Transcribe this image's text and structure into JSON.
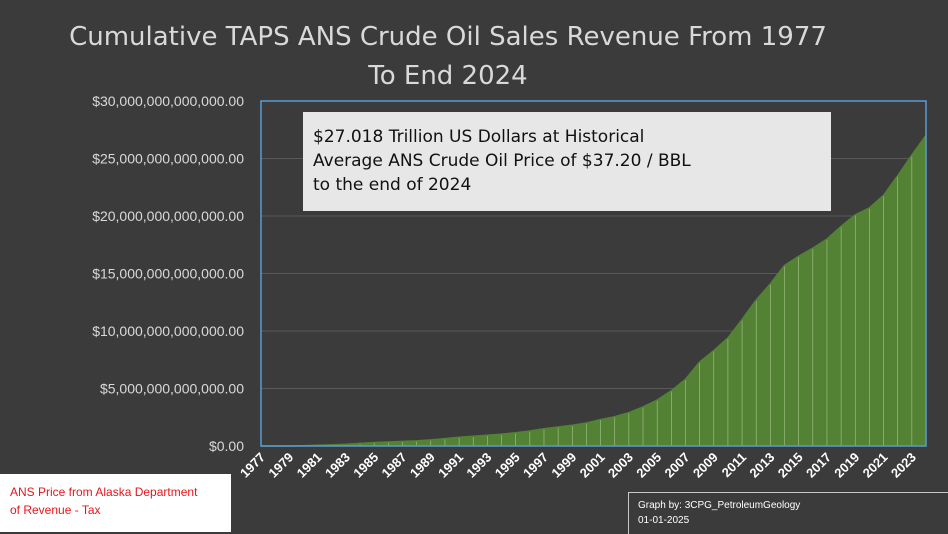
{
  "title_line1": "Cumulative TAPS ANS Crude Oil Sales Revenue From 1977",
  "title_line2": "To End 2024",
  "annotation": {
    "line1": "$27.018 Trillion US Dollars at Historical",
    "line2": "Average ANS Crude Oil Price of $37.20 / BBL",
    "line3": "to the end of 2024"
  },
  "source": {
    "line1": "ANS Price from Alaska Department",
    "line2": "of Revenue - Tax"
  },
  "credit": {
    "line1": "Graph by: 3CPG_PetroleumGeology",
    "line2": "01-01-2025"
  },
  "colors": {
    "background": "#3b3b3b",
    "area_fill": "#548235",
    "bar_divider": "#a9c48f",
    "plot_border": "#5b9bd5",
    "gridline": "#5a5a5a",
    "text": "#d9d9d9"
  },
  "chart_data": {
    "type": "area",
    "title": "Cumulative TAPS ANS Crude Oil Sales Revenue From 1977 To End 2024",
    "xlabel": "",
    "ylabel": "",
    "ylim": [
      0,
      30000000000000
    ],
    "yticks": [
      0,
      5000000000000,
      10000000000000,
      15000000000000,
      20000000000000,
      25000000000000,
      30000000000000
    ],
    "ytick_labels": [
      "$0.00",
      "$5,000,000,000,000.00",
      "$10,000,000,000,000.00",
      "$15,000,000,000,000.00",
      "$20,000,000,000,000.00",
      "$25,000,000,000,000.00",
      "$30,000,000,000,000.00"
    ],
    "xtick_labels": [
      "1977",
      "1979",
      "1981",
      "1983",
      "1985",
      "1987",
      "1989",
      "1991",
      "1993",
      "1995",
      "1997",
      "1999",
      "2001",
      "2003",
      "2005",
      "2007",
      "2009",
      "2011",
      "2013",
      "2015",
      "2017",
      "2019",
      "2021",
      "2023"
    ],
    "grid": true,
    "x": [
      1977,
      1978,
      1979,
      1980,
      1981,
      1982,
      1983,
      1984,
      1985,
      1986,
      1987,
      1988,
      1989,
      1990,
      1991,
      1992,
      1993,
      1994,
      1995,
      1996,
      1997,
      1998,
      1999,
      2000,
      2001,
      2002,
      2003,
      2004,
      2005,
      2006,
      2007,
      2008,
      2009,
      2010,
      2011,
      2012,
      2013,
      2014,
      2015,
      2016,
      2017,
      2018,
      2019,
      2020,
      2021,
      2022,
      2023,
      2024
    ],
    "values": [
      0,
      0,
      0,
      20000000000,
      60000000000,
      100000000000,
      150000000000,
      230000000000,
      300000000000,
      350000000000,
      400000000000,
      450000000000,
      530000000000,
      640000000000,
      760000000000,
      850000000000,
      940000000000,
      1030000000000,
      1150000000000,
      1300000000000,
      1500000000000,
      1650000000000,
      1800000000000,
      2000000000000,
      2300000000000,
      2550000000000,
      2900000000000,
      3400000000000,
      4000000000000,
      4800000000000,
      5800000000000,
      7300000000000,
      8300000000000,
      9400000000000,
      11000000000000,
      12700000000000,
      14100000000000,
      15700000000000,
      16500000000000,
      17200000000000,
      18000000000000,
      19100000000000,
      20100000000000,
      20700000000000,
      21800000000000,
      23500000000000,
      25300000000000,
      27018000000000
    ]
  }
}
